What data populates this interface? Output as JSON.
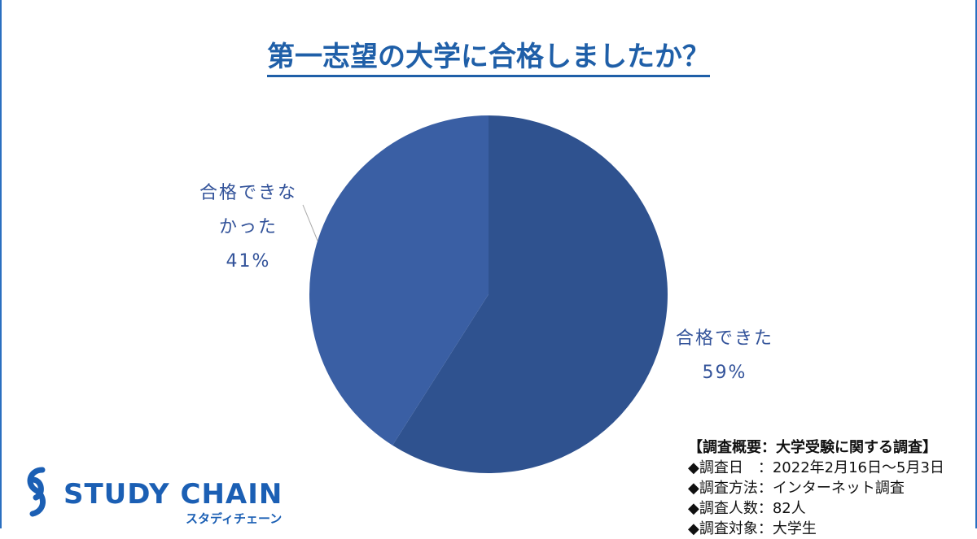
{
  "chart_data": {
    "type": "pie",
    "title": "第一志望の大学に合格しましたか？",
    "categories": [
      "合格できた",
      "合格できなかった"
    ],
    "values": [
      59,
      41
    ],
    "value_labels": [
      "59%",
      "41%"
    ],
    "colors": [
      "#2f528f",
      "#3a5fa4"
    ],
    "annotations": [
      "【調査概要：大学受験に関する調査】",
      "◆調査日　：2022年2月16日～5月3日",
      "◆調査方法：インターネット調査",
      "◆調査人数：82人",
      "◆調査対象：大学生"
    ]
  },
  "logo": {
    "name": "STUDY CHAIN",
    "kana": "スタディチェーン"
  }
}
